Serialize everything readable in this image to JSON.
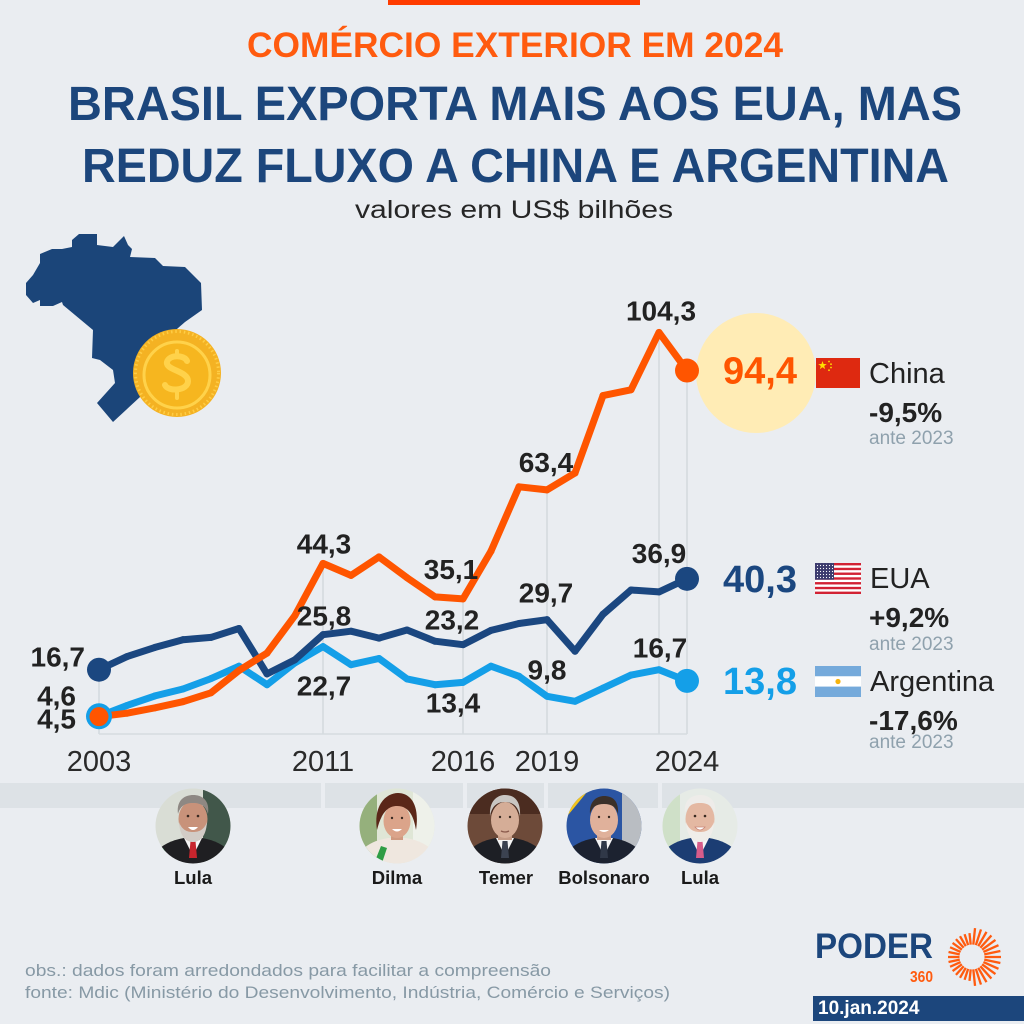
{
  "chart_data": {
    "type": "line",
    "kicker": "COMÉRCIO EXTERIOR EM 2024",
    "title_lines": [
      "BRASIL EXPORTA MAIS AOS EUA, MAS",
      "REDUZ FLUXO A CHINA E ARGENTINA"
    ],
    "subtitle": "valores em US$ bilhões",
    "x": [
      2003,
      2004,
      2005,
      2006,
      2007,
      2008,
      2009,
      2010,
      2011,
      2012,
      2013,
      2014,
      2015,
      2016,
      2017,
      2018,
      2019,
      2020,
      2021,
      2022,
      2023,
      2024
    ],
    "xlim": [
      2003,
      2024
    ],
    "ylim": [
      0,
      110
    ],
    "x_ticks": [
      2003,
      2011,
      2016,
      2019,
      2024
    ],
    "x_tick_labels": [
      "2003",
      "2011",
      "2016",
      "2019",
      "2024"
    ],
    "gridlines_x": [
      2003,
      2011,
      2016,
      2019,
      2023,
      2024
    ],
    "grid": "vertical",
    "legend_position": "right",
    "series": [
      {
        "name": "China",
        "color": "#ff5500",
        "values": [
          4.5,
          5.4,
          6.8,
          8.4,
          10.7,
          16.5,
          21.0,
          30.8,
          44.3,
          41.2,
          46.0,
          40.6,
          35.6,
          35.1,
          47.5,
          64.2,
          63.4,
          67.8,
          87.9,
          89.4,
          104.3,
          94.4
        ],
        "end_value_label": "94,4",
        "change": "-9,5%",
        "change_note": "ante 2023",
        "flag_icon": "china-flag-icon"
      },
      {
        "name": "EUA",
        "color": "#1b4780",
        "values": [
          16.7,
          20.1,
          22.5,
          24.5,
          25.1,
          27.4,
          15.6,
          19.3,
          25.8,
          26.7,
          24.9,
          27.0,
          24.1,
          23.2,
          26.9,
          28.7,
          29.7,
          21.5,
          31.1,
          37.4,
          36.9,
          40.3
        ],
        "end_value_label": "40,3",
        "change": "+9,2%",
        "change_note": "ante 2023",
        "flag_icon": "usa-flag-icon"
      },
      {
        "name": "Argentina",
        "color": "#149fe8",
        "values": [
          4.6,
          7.4,
          9.9,
          11.7,
          14.4,
          17.6,
          12.8,
          18.5,
          22.7,
          18.0,
          19.6,
          14.3,
          12.8,
          13.4,
          17.6,
          15.0,
          9.8,
          8.5,
          11.9,
          15.3,
          16.7,
          13.8
        ],
        "end_value_label": "13,8",
        "change": "-17,6%",
        "change_note": "ante 2023",
        "flag_icon": "argentina-flag-icon"
      }
    ],
    "annotations": [
      {
        "series": "China",
        "x": 2023,
        "text": "104,3"
      },
      {
        "series": "China",
        "x": 2019,
        "text": "63,4"
      },
      {
        "series": "China",
        "x": 2011,
        "text": "44,3"
      },
      {
        "series": "China",
        "x": 2016,
        "text": "35,1"
      },
      {
        "series": "EUA",
        "x": 2003,
        "text": "16,7"
      },
      {
        "series": "EUA",
        "x": 2011,
        "text": "25,8"
      },
      {
        "series": "EUA",
        "x": 2016,
        "text": "23,2"
      },
      {
        "series": "EUA",
        "x": 2019,
        "text": "29,7"
      },
      {
        "series": "EUA",
        "x": 2023,
        "text": "36,9"
      },
      {
        "series": "Argentina",
        "x": 2003,
        "text": "4,6"
      },
      {
        "series": "China",
        "x": 2003,
        "text": "4,5"
      },
      {
        "series": "Argentina",
        "x": 2011,
        "text": "22,7"
      },
      {
        "series": "Argentina",
        "x": 2016,
        "text": "13,4"
      },
      {
        "series": "Argentina",
        "x": 2019,
        "text": "9,8"
      },
      {
        "series": "Argentina",
        "x": 2023,
        "text": "16,7"
      }
    ]
  },
  "presidents": [
    {
      "name": "Lula"
    },
    {
      "name": "Dilma"
    },
    {
      "name": "Temer"
    },
    {
      "name": "Bolsonaro"
    },
    {
      "name": "Lula"
    }
  ],
  "footer": {
    "obs": "obs.: dados foram arredondados para facilitar a compreensão",
    "source": "fonte: Mdic (Ministério do Desenvolvimento, Indústria, Comércio e Serviços)"
  },
  "brand": {
    "logo_word": "PODER",
    "logo_number": "360",
    "date": "10.jan.2024"
  },
  "icons": {
    "map": "brazil-map-icon",
    "coin": "dollar-coin-icon",
    "sun": "poder360-sun-icon"
  }
}
